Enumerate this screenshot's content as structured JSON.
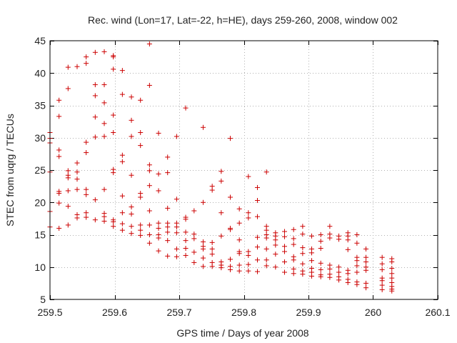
{
  "chart_data": {
    "type": "scatter",
    "title": "Rec. wind (Lon=17, Lat=-22, h=HE), days 259-260, 2008, window 002",
    "xlabel": "GPS time / Days of year 2008",
    "ylabel": "STEC from uqrg / TECUs",
    "xlim": [
      259.5,
      260.1
    ],
    "ylim": [
      5,
      45
    ],
    "xticks": [
      259.5,
      259.6,
      259.7,
      259.8,
      259.9,
      260,
      260.1
    ],
    "xtick_labels": [
      "259.5",
      "259.6",
      "259.7",
      "259.8",
      "259.9",
      "260",
      "260.1"
    ],
    "yticks": [
      5,
      10,
      15,
      20,
      25,
      30,
      35,
      40,
      45
    ],
    "ytick_labels": [
      "5",
      "10",
      "15",
      "20",
      "25",
      "30",
      "35",
      "40",
      "45"
    ],
    "grid": true,
    "marker": "plus",
    "marker_color": "#cc0000",
    "series": [
      {
        "name": "STEC",
        "points": [
          [
            259.5,
            30.8
          ],
          [
            259.5,
            29.9
          ],
          [
            259.5,
            29.2
          ],
          [
            259.5,
            24.7
          ],
          [
            259.5,
            18.6
          ],
          [
            259.5,
            16.2
          ],
          [
            259.514,
            35.8
          ],
          [
            259.514,
            33.3
          ],
          [
            259.514,
            28.1
          ],
          [
            259.514,
            27.1
          ],
          [
            259.514,
            21.7
          ],
          [
            259.514,
            21.4
          ],
          [
            259.514,
            19.9
          ],
          [
            259.514,
            16.0
          ],
          [
            259.528,
            40.9
          ],
          [
            259.528,
            37.6
          ],
          [
            259.528,
            24.9
          ],
          [
            259.528,
            24.2
          ],
          [
            259.528,
            23.8
          ],
          [
            259.528,
            21.8
          ],
          [
            259.528,
            19.4
          ],
          [
            259.528,
            16.5
          ],
          [
            259.542,
            41.0
          ],
          [
            259.542,
            26.1
          ],
          [
            259.542,
            24.7
          ],
          [
            259.542,
            23.6
          ],
          [
            259.542,
            22.0
          ],
          [
            259.542,
            18.1
          ],
          [
            259.542,
            17.6
          ],
          [
            259.556,
            42.5
          ],
          [
            259.556,
            41.5
          ],
          [
            259.556,
            29.3
          ],
          [
            259.556,
            27.7
          ],
          [
            259.556,
            22.0
          ],
          [
            259.556,
            21.2
          ],
          [
            259.556,
            18.4
          ],
          [
            259.556,
            17.7
          ],
          [
            259.57,
            43.2
          ],
          [
            259.57,
            38.2
          ],
          [
            259.57,
            36.5
          ],
          [
            259.57,
            33.2
          ],
          [
            259.57,
            30.1
          ],
          [
            259.57,
            20.4
          ],
          [
            259.57,
            17.3
          ],
          [
            259.584,
            43.3
          ],
          [
            259.584,
            38.2
          ],
          [
            259.584,
            35.4
          ],
          [
            259.584,
            32.2
          ],
          [
            259.584,
            30.2
          ],
          [
            259.584,
            22.0
          ],
          [
            259.584,
            18.3
          ],
          [
            259.584,
            17.8
          ],
          [
            259.584,
            17.1
          ],
          [
            259.598,
            42.7
          ],
          [
            259.598,
            42.5
          ],
          [
            259.598,
            40.6
          ],
          [
            259.598,
            33.5
          ],
          [
            259.598,
            30.8
          ],
          [
            259.598,
            25.1
          ],
          [
            259.598,
            24.6
          ],
          [
            259.598,
            17.3
          ],
          [
            259.598,
            17.0
          ],
          [
            259.598,
            16.3
          ],
          [
            259.612,
            40.4
          ],
          [
            259.612,
            36.7
          ],
          [
            259.612,
            27.3
          ],
          [
            259.612,
            26.3
          ],
          [
            259.612,
            21.0
          ],
          [
            259.612,
            18.4
          ],
          [
            259.612,
            16.7
          ],
          [
            259.612,
            15.7
          ],
          [
            259.626,
            36.3
          ],
          [
            259.626,
            32.7
          ],
          [
            259.626,
            30.2
          ],
          [
            259.626,
            24.2
          ],
          [
            259.626,
            19.3
          ],
          [
            259.626,
            18.2
          ],
          [
            259.626,
            16.3
          ],
          [
            259.626,
            15.2
          ],
          [
            259.64,
            35.8
          ],
          [
            259.64,
            30.8
          ],
          [
            259.64,
            28.8
          ],
          [
            259.64,
            21.4
          ],
          [
            259.64,
            20.8
          ],
          [
            259.64,
            16.5
          ],
          [
            259.64,
            15.7
          ],
          [
            259.64,
            14.9
          ],
          [
            259.654,
            44.5
          ],
          [
            259.654,
            38.1
          ],
          [
            259.654,
            25.8
          ],
          [
            259.654,
            24.9
          ],
          [
            259.654,
            22.6
          ],
          [
            259.654,
            18.7
          ],
          [
            259.654,
            16.5
          ],
          [
            259.654,
            15.0
          ],
          [
            259.654,
            13.7
          ],
          [
            259.668,
            30.7
          ],
          [
            259.668,
            24.4
          ],
          [
            259.668,
            21.8
          ],
          [
            259.668,
            16.8
          ],
          [
            259.668,
            16.0
          ],
          [
            259.668,
            15.0
          ],
          [
            259.668,
            14.5
          ],
          [
            259.668,
            12.5
          ],
          [
            259.682,
            27.0
          ],
          [
            259.682,
            24.6
          ],
          [
            259.682,
            19.1
          ],
          [
            259.682,
            16.8
          ],
          [
            259.682,
            16.2
          ],
          [
            259.682,
            15.4
          ],
          [
            259.682,
            14.1
          ],
          [
            259.682,
            11.7
          ],
          [
            259.696,
            30.2
          ],
          [
            259.696,
            20.5
          ],
          [
            259.696,
            16.8
          ],
          [
            259.696,
            16.2
          ],
          [
            259.696,
            15.3
          ],
          [
            259.696,
            12.8
          ],
          [
            259.696,
            11.6
          ],
          [
            259.71,
            34.6
          ],
          [
            259.71,
            17.7
          ],
          [
            259.71,
            17.4
          ],
          [
            259.71,
            15.4
          ],
          [
            259.71,
            14.1
          ],
          [
            259.71,
            12.9
          ],
          [
            259.71,
            11.8
          ],
          [
            259.723,
            18.7
          ],
          [
            259.723,
            15.1
          ],
          [
            259.723,
            14.4
          ],
          [
            259.723,
            12.3
          ],
          [
            259.723,
            10.7
          ],
          [
            259.737,
            31.6
          ],
          [
            259.737,
            20.0
          ],
          [
            259.737,
            13.9
          ],
          [
            259.737,
            13.2
          ],
          [
            259.737,
            12.8
          ],
          [
            259.737,
            11.4
          ],
          [
            259.737,
            10.1
          ],
          [
            259.751,
            22.5
          ],
          [
            259.751,
            21.9
          ],
          [
            259.751,
            13.8
          ],
          [
            259.751,
            12.8
          ],
          [
            259.751,
            12.0
          ],
          [
            259.751,
            10.7
          ],
          [
            259.751,
            10.1
          ],
          [
            259.765,
            24.8
          ],
          [
            259.765,
            23.3
          ],
          [
            259.765,
            18.4
          ],
          [
            259.765,
            14.8
          ],
          [
            259.765,
            10.8
          ],
          [
            259.765,
            10.3
          ],
          [
            259.765,
            9.9
          ],
          [
            259.779,
            29.9
          ],
          [
            259.779,
            20.8
          ],
          [
            259.779,
            16.0
          ],
          [
            259.779,
            15.8
          ],
          [
            259.779,
            11.2
          ],
          [
            259.779,
            10.1
          ],
          [
            259.779,
            9.6
          ],
          [
            259.793,
            19.0
          ],
          [
            259.793,
            16.8
          ],
          [
            259.793,
            14.2
          ],
          [
            259.793,
            12.4
          ],
          [
            259.793,
            12.1
          ],
          [
            259.793,
            10.3
          ],
          [
            259.793,
            9.4
          ],
          [
            259.807,
            24.0
          ],
          [
            259.807,
            18.4
          ],
          [
            259.807,
            17.6
          ],
          [
            259.807,
            12.4
          ],
          [
            259.807,
            11.8
          ],
          [
            259.807,
            10.4
          ],
          [
            259.807,
            9.4
          ],
          [
            259.821,
            22.3
          ],
          [
            259.821,
            20.3
          ],
          [
            259.821,
            17.8
          ],
          [
            259.821,
            14.6
          ],
          [
            259.821,
            13.1
          ],
          [
            259.821,
            11.1
          ],
          [
            259.821,
            9.3
          ],
          [
            259.835,
            24.7
          ],
          [
            259.835,
            16.3
          ],
          [
            259.835,
            15.7
          ],
          [
            259.835,
            15.0
          ],
          [
            259.835,
            14.5
          ],
          [
            259.835,
            12.8
          ],
          [
            259.835,
            11.1
          ],
          [
            259.835,
            10.2
          ],
          [
            259.849,
            15.3
          ],
          [
            259.849,
            14.8
          ],
          [
            259.849,
            14.2
          ],
          [
            259.849,
            13.4
          ],
          [
            259.849,
            12.0
          ],
          [
            259.849,
            10.0
          ],
          [
            259.863,
            15.5
          ],
          [
            259.863,
            14.7
          ],
          [
            259.863,
            13.2
          ],
          [
            259.863,
            12.4
          ],
          [
            259.863,
            10.8
          ],
          [
            259.863,
            9.2
          ],
          [
            259.877,
            15.8
          ],
          [
            259.877,
            14.4
          ],
          [
            259.877,
            13.5
          ],
          [
            259.877,
            11.6
          ],
          [
            259.877,
            11.1
          ],
          [
            259.877,
            9.7
          ],
          [
            259.877,
            9.0
          ],
          [
            259.891,
            16.3
          ],
          [
            259.891,
            15.1
          ],
          [
            259.891,
            13.0
          ],
          [
            259.891,
            12.1
          ],
          [
            259.891,
            10.5
          ],
          [
            259.891,
            9.4
          ],
          [
            259.891,
            8.9
          ],
          [
            259.905,
            14.8
          ],
          [
            259.905,
            12.8
          ],
          [
            259.905,
            12.2
          ],
          [
            259.905,
            11.0
          ],
          [
            259.905,
            9.8
          ],
          [
            259.905,
            9.2
          ],
          [
            259.905,
            8.6
          ],
          [
            259.919,
            15.0
          ],
          [
            259.919,
            14.0
          ],
          [
            259.919,
            12.9
          ],
          [
            259.919,
            10.6
          ],
          [
            259.919,
            9.6
          ],
          [
            259.919,
            8.8
          ],
          [
            259.919,
            8.5
          ],
          [
            259.933,
            16.3
          ],
          [
            259.933,
            15.1
          ],
          [
            259.933,
            14.5
          ],
          [
            259.933,
            10.3
          ],
          [
            259.933,
            9.7
          ],
          [
            259.933,
            8.9
          ],
          [
            259.933,
            8.4
          ],
          [
            259.947,
            14.8
          ],
          [
            259.947,
            14.3
          ],
          [
            259.947,
            10.0
          ],
          [
            259.947,
            9.2
          ],
          [
            259.947,
            8.5
          ],
          [
            259.947,
            8.0
          ],
          [
            259.961,
            15.3
          ],
          [
            259.961,
            14.8
          ],
          [
            259.961,
            14.2
          ],
          [
            259.961,
            12.7
          ],
          [
            259.961,
            9.5
          ],
          [
            259.961,
            9.0
          ],
          [
            259.961,
            8.1
          ],
          [
            259.961,
            7.6
          ],
          [
            259.975,
            15.0
          ],
          [
            259.975,
            13.7
          ],
          [
            259.975,
            11.5
          ],
          [
            259.975,
            11.0
          ],
          [
            259.975,
            10.2
          ],
          [
            259.975,
            9.2
          ],
          [
            259.975,
            7.7
          ],
          [
            259.975,
            7.3
          ],
          [
            259.989,
            12.8
          ],
          [
            259.989,
            11.5
          ],
          [
            259.989,
            10.8
          ],
          [
            259.989,
            10.0
          ],
          [
            259.989,
            9.5
          ],
          [
            259.989,
            7.5
          ],
          [
            259.989,
            6.8
          ],
          [
            260.014,
            11.5
          ],
          [
            260.014,
            10.5
          ],
          [
            260.014,
            9.6
          ],
          [
            260.014,
            8.3
          ],
          [
            260.014,
            7.9
          ],
          [
            260.014,
            7.2
          ],
          [
            260.014,
            6.5
          ],
          [
            260.029,
            11.3
          ],
          [
            260.029,
            10.8
          ],
          [
            260.029,
            9.8
          ],
          [
            260.029,
            9.0
          ],
          [
            260.029,
            8.3
          ],
          [
            260.029,
            7.6
          ],
          [
            260.029,
            7.0
          ],
          [
            260.029,
            6.6
          ],
          [
            260.029,
            6.3
          ]
        ]
      }
    ]
  }
}
